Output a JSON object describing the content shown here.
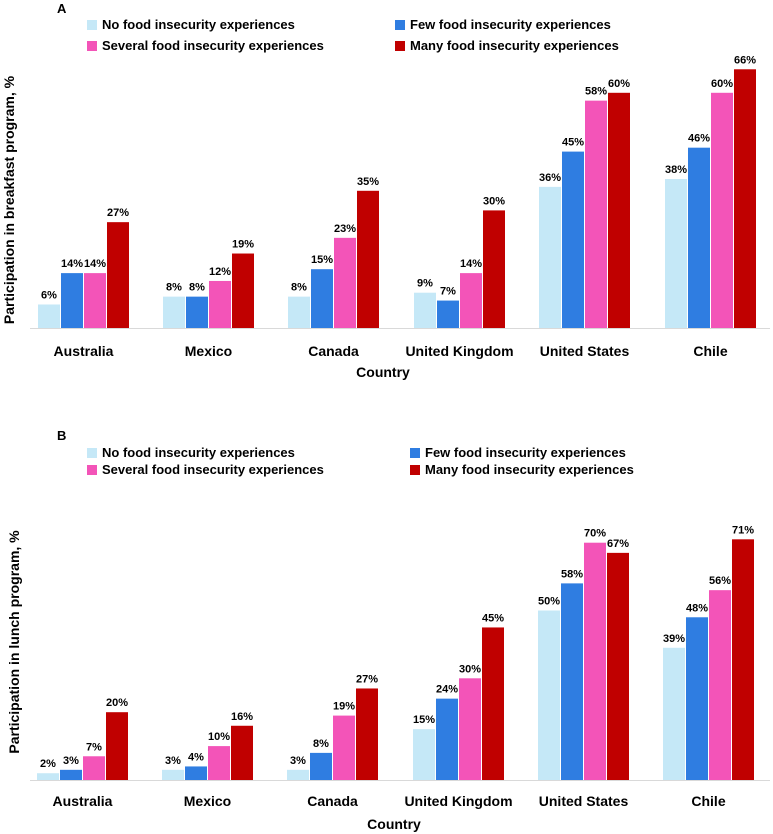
{
  "chart_data": [
    {
      "type": "bar",
      "panel_label": "A",
      "xlabel": "Country",
      "ylabel": "Participation in breakfast program, %",
      "ylim": [
        0,
        70
      ],
      "categories": [
        "Australia",
        "Mexico",
        "Canada",
        "United Kingdom",
        "United States",
        "Chile"
      ],
      "series": [
        {
          "name": "No food insecurity experiences",
          "color": "#c5e8f7",
          "values": [
            6,
            8,
            8,
            9,
            36,
            38
          ],
          "labels": [
            "6%",
            "8%",
            "8%",
            "9%",
            "36%",
            "38%"
          ]
        },
        {
          "name": "Few food insecurity experiences",
          "color": "#2f7de1",
          "values": [
            14,
            8,
            15,
            7,
            45,
            46
          ],
          "labels": [
            "14%",
            "8%",
            "15%",
            "7%",
            "45%",
            "46%"
          ]
        },
        {
          "name": "Several food insecurity experiences",
          "color": "#f354b8",
          "values": [
            14,
            12,
            23,
            14,
            58,
            60
          ],
          "labels": [
            "14%",
            "12%",
            "23%",
            "14%",
            "58%",
            "60%"
          ]
        },
        {
          "name": "Many food insecurity experiences",
          "color": "#c00000",
          "values": [
            27,
            19,
            35,
            30,
            60,
            66
          ],
          "labels": [
            "27%",
            "19%",
            "35%",
            "30%",
            "60%",
            "66%"
          ]
        }
      ],
      "legend_position": "top"
    },
    {
      "type": "bar",
      "panel_label": "B",
      "xlabel": "Country",
      "ylabel": "Participation in lunch program, %",
      "ylim": [
        0,
        75
      ],
      "categories": [
        "Australia",
        "Mexico",
        "Canada",
        "United Kingdom",
        "United States",
        "Chile"
      ],
      "series": [
        {
          "name": "No food insecurity experiences",
          "color": "#c5e8f7",
          "values": [
            2,
            3,
            3,
            15,
            50,
            39
          ],
          "labels": [
            "2%",
            "3%",
            "3%",
            "15%",
            "50%",
            "39%"
          ]
        },
        {
          "name": "Few food insecurity experiences",
          "color": "#2f7de1",
          "values": [
            3,
            4,
            8,
            24,
            58,
            48
          ],
          "labels": [
            "3%",
            "4%",
            "8%",
            "24%",
            "58%",
            "48%"
          ]
        },
        {
          "name": "Several food insecurity experiences",
          "color": "#f354b8",
          "values": [
            7,
            10,
            19,
            30,
            70,
            56
          ],
          "labels": [
            "7%",
            "10%",
            "19%",
            "30%",
            "70%",
            "56%"
          ]
        },
        {
          "name": "Many food insecurity experiences",
          "color": "#c00000",
          "values": [
            20,
            16,
            27,
            45,
            67,
            71
          ],
          "labels": [
            "20%",
            "16%",
            "27%",
            "45%",
            "67%",
            "71%"
          ]
        }
      ],
      "legend_position": "top"
    }
  ]
}
